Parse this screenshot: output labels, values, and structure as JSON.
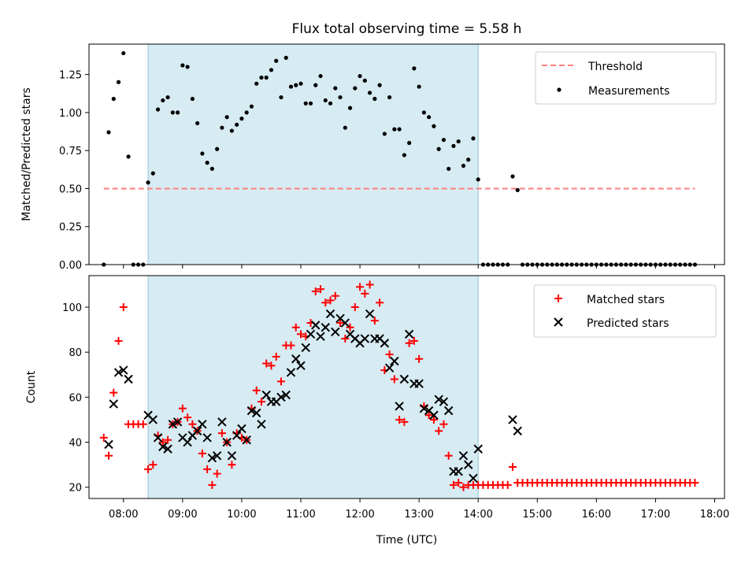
{
  "chart_data": [
    {
      "type": "scatter",
      "title": "Flux total observing time = 5.58 h",
      "xlabel": "",
      "ylabel": "Matched/Predicted stars",
      "xlim": [
        "07:25",
        "18:10"
      ],
      "ylim": [
        0,
        1.45
      ],
      "yticks": [
        0,
        0.25,
        0.5,
        0.75,
        1.0,
        1.25
      ],
      "ytick_labels": [
        "0.00",
        "0.25",
        "0.50",
        "0.75",
        "1.00",
        "1.25"
      ],
      "xticks": [
        "08:00",
        "09:00",
        "10:00",
        "11:00",
        "12:00",
        "13:00",
        "14:00",
        "15:00",
        "16:00",
        "17:00",
        "18:00"
      ],
      "shaded_span": {
        "x": [
          "08:25",
          "14:00"
        ],
        "color": "#add8e6"
      },
      "legend_position": "top-right",
      "threshold": {
        "name": "Threshold",
        "y": 0.5,
        "x": [
          "07:40",
          "17:40"
        ],
        "color": "#ff7f7f",
        "style": "dashed"
      },
      "series": [
        {
          "name": "Measurements",
          "marker": "dot",
          "color": "#000000",
          "x": [
            "07:40",
            "07:45",
            "07:50",
            "07:55",
            "08:00",
            "08:05",
            "08:10",
            "08:15",
            "08:20",
            "08:25",
            "08:30",
            "08:35",
            "08:40",
            "08:45",
            "08:50",
            "08:55",
            "09:00",
            "09:05",
            "09:10",
            "09:15",
            "09:20",
            "09:25",
            "09:30",
            "09:35",
            "09:40",
            "09:45",
            "09:50",
            "09:55",
            "10:00",
            "10:05",
            "10:10",
            "10:15",
            "10:20",
            "10:25",
            "10:30",
            "10:35",
            "10:40",
            "10:45",
            "10:50",
            "10:55",
            "11:00",
            "11:05",
            "11:10",
            "11:15",
            "11:20",
            "11:25",
            "11:30",
            "11:35",
            "11:40",
            "11:45",
            "11:50",
            "11:55",
            "12:00",
            "12:05",
            "12:10",
            "12:15",
            "12:20",
            "12:25",
            "12:30",
            "12:35",
            "12:40",
            "12:45",
            "12:50",
            "12:55",
            "13:00",
            "13:05",
            "13:10",
            "13:15",
            "13:20",
            "13:25",
            "13:30",
            "13:35",
            "13:40",
            "13:45",
            "13:50",
            "13:55",
            "14:00",
            "14:05",
            "14:10",
            "14:15",
            "14:20",
            "14:25",
            "14:30",
            "14:35",
            "14:40",
            "14:45",
            "14:50",
            "14:55",
            "15:00",
            "15:05",
            "15:10",
            "15:15",
            "15:20",
            "15:25",
            "15:30",
            "15:35",
            "15:40",
            "15:45",
            "15:50",
            "15:55",
            "16:00",
            "16:05",
            "16:10",
            "16:15",
            "16:20",
            "16:25",
            "16:30",
            "16:35",
            "16:40",
            "16:45",
            "16:50",
            "16:55",
            "17:00",
            "17:05",
            "17:10",
            "17:15",
            "17:20",
            "17:25",
            "17:30",
            "17:35",
            "17:40"
          ],
          "y": [
            0.0,
            0.87,
            1.09,
            1.2,
            1.39,
            0.71,
            0.0,
            0.0,
            0.0,
            0.54,
            0.6,
            1.02,
            1.08,
            1.1,
            1.0,
            1.0,
            1.31,
            1.3,
            1.09,
            0.93,
            0.73,
            0.67,
            0.63,
            0.76,
            0.9,
            0.97,
            0.88,
            0.92,
            0.96,
            1.0,
            1.04,
            1.19,
            1.23,
            1.23,
            1.28,
            1.34,
            1.1,
            1.36,
            1.17,
            1.18,
            1.19,
            1.06,
            1.06,
            1.18,
            1.24,
            1.08,
            1.06,
            1.16,
            1.1,
            0.9,
            1.03,
            1.16,
            1.24,
            1.21,
            1.13,
            1.09,
            1.18,
            0.86,
            1.1,
            0.89,
            0.89,
            0.72,
            0.8,
            1.29,
            1.17,
            1.0,
            0.97,
            0.91,
            0.76,
            0.82,
            0.63,
            0.78,
            0.81,
            0.65,
            0.69,
            0.83,
            0.56,
            0.0,
            0.0,
            0.0,
            0.0,
            0.0,
            0.0,
            0.58,
            0.49,
            0.0,
            0.0,
            0.0,
            0.0,
            0.0,
            0.0,
            0.0,
            0.0,
            0.0,
            0.0,
            0.0,
            0.0,
            0.0,
            0.0,
            0.0,
            0.0,
            0.0,
            0.0,
            0.0,
            0.0,
            0.0,
            0.0,
            0.0,
            0.0,
            0.0,
            0.0,
            0.0,
            0.0,
            0.0,
            0.0,
            0.0,
            0.0,
            0.0,
            0.0,
            0.0,
            0.0
          ]
        }
      ]
    },
    {
      "type": "scatter",
      "title": "",
      "xlabel": "Time (UTC)",
      "ylabel": "Count",
      "xlim": [
        "07:25",
        "18:10"
      ],
      "ylim": [
        15,
        114
      ],
      "yticks": [
        20,
        40,
        60,
        80,
        100
      ],
      "ytick_labels": [
        "20",
        "40",
        "60",
        "80",
        "100"
      ],
      "xticks": [
        "08:00",
        "09:00",
        "10:00",
        "11:00",
        "12:00",
        "13:00",
        "14:00",
        "15:00",
        "16:00",
        "17:00",
        "18:00"
      ],
      "xtick_labels": [
        "08:00",
        "09:00",
        "10:00",
        "11:00",
        "12:00",
        "13:00",
        "14:00",
        "15:00",
        "16:00",
        "17:00",
        "18:00"
      ],
      "shaded_span": {
        "x": [
          "08:25",
          "14:00"
        ],
        "color": "#add8e6"
      },
      "legend_position": "top-right",
      "series": [
        {
          "name": "Matched stars",
          "marker": "plus",
          "color": "#ff0000",
          "x": [
            "07:40",
            "07:45",
            "07:50",
            "07:55",
            "08:00",
            "08:05",
            "08:10",
            "08:15",
            "08:20",
            "08:25",
            "08:30",
            "08:35",
            "08:40",
            "08:45",
            "08:50",
            "08:55",
            "09:00",
            "09:05",
            "09:10",
            "09:15",
            "09:20",
            "09:25",
            "09:30",
            "09:35",
            "09:40",
            "09:45",
            "09:50",
            "09:55",
            "10:00",
            "10:05",
            "10:10",
            "10:15",
            "10:20",
            "10:25",
            "10:30",
            "10:35",
            "10:40",
            "10:45",
            "10:50",
            "10:55",
            "11:00",
            "11:05",
            "11:10",
            "11:15",
            "11:20",
            "11:25",
            "11:30",
            "11:35",
            "11:40",
            "11:45",
            "11:50",
            "11:55",
            "12:00",
            "12:05",
            "12:10",
            "12:15",
            "12:20",
            "12:25",
            "12:30",
            "12:35",
            "12:40",
            "12:45",
            "12:50",
            "12:55",
            "13:00",
            "13:05",
            "13:10",
            "13:15",
            "13:20",
            "13:25",
            "13:30",
            "13:35",
            "13:40",
            "13:45",
            "13:50",
            "13:55",
            "14:00",
            "14:05",
            "14:10",
            "14:15",
            "14:20",
            "14:25",
            "14:30",
            "14:35",
            "14:40",
            "14:45",
            "14:50",
            "14:55",
            "15:00",
            "15:05",
            "15:10",
            "15:15",
            "15:20",
            "15:25",
            "15:30",
            "15:35",
            "15:40",
            "15:45",
            "15:50",
            "15:55",
            "16:00",
            "16:05",
            "16:10",
            "16:15",
            "16:20",
            "16:25",
            "16:30",
            "16:35",
            "16:40",
            "16:45",
            "16:50",
            "16:55",
            "17:00",
            "17:05",
            "17:10",
            "17:15",
            "17:20",
            "17:25",
            "17:30",
            "17:35",
            "17:40"
          ],
          "y": [
            42,
            34,
            62,
            85,
            100,
            48,
            48,
            48,
            48,
            28,
            30,
            43,
            40,
            41,
            48,
            49,
            55,
            51,
            48,
            45,
            35,
            28,
            21,
            26,
            44,
            40,
            30,
            44,
            42,
            41,
            55,
            63,
            58,
            75,
            74,
            78,
            67,
            83,
            83,
            91,
            88,
            87,
            93,
            107,
            108,
            102,
            103,
            105,
            93,
            86,
            91,
            100,
            109,
            106,
            110,
            94,
            102,
            72,
            79,
            68,
            50,
            49,
            84,
            85,
            77,
            56,
            52,
            50,
            45,
            48,
            34,
            21,
            22,
            20,
            21,
            21,
            21,
            21,
            21,
            21,
            21,
            21,
            21,
            29,
            22,
            22,
            22,
            22,
            22,
            22,
            22,
            22,
            22,
            22,
            22,
            22,
            22,
            22,
            22,
            22,
            22,
            22,
            22,
            22,
            22,
            22,
            22,
            22,
            22,
            22,
            22,
            22,
            22,
            22,
            22,
            22,
            22,
            22,
            22,
            22,
            22
          ]
        },
        {
          "name": "Predicted stars",
          "marker": "x",
          "color": "#000000",
          "x": [
            "07:45",
            "07:50",
            "07:55",
            "08:00",
            "08:05",
            "08:25",
            "08:30",
            "08:35",
            "08:40",
            "08:45",
            "08:50",
            "08:55",
            "09:00",
            "09:05",
            "09:10",
            "09:15",
            "09:20",
            "09:25",
            "09:30",
            "09:35",
            "09:40",
            "09:45",
            "09:50",
            "09:55",
            "10:00",
            "10:05",
            "10:10",
            "10:15",
            "10:20",
            "10:25",
            "10:30",
            "10:35",
            "10:40",
            "10:45",
            "10:50",
            "10:55",
            "11:00",
            "11:05",
            "11:10",
            "11:15",
            "11:20",
            "11:25",
            "11:30",
            "11:35",
            "11:40",
            "11:45",
            "11:50",
            "11:55",
            "12:00",
            "12:05",
            "12:10",
            "12:15",
            "12:20",
            "12:25",
            "12:30",
            "12:35",
            "12:40",
            "12:45",
            "12:50",
            "12:55",
            "13:00",
            "13:05",
            "13:10",
            "13:15",
            "13:20",
            "13:25",
            "13:30",
            "13:35",
            "13:40",
            "13:45",
            "13:50",
            "13:55",
            "14:00",
            "14:35",
            "14:40"
          ],
          "y": [
            39,
            57,
            71,
            72,
            68,
            52,
            50,
            42,
            38,
            37,
            48,
            49,
            42,
            40,
            43,
            45,
            48,
            42,
            33,
            34,
            49,
            40,
            34,
            43,
            46,
            41,
            54,
            53,
            48,
            61,
            58,
            58,
            60,
            61,
            71,
            77,
            74,
            82,
            88,
            92,
            87,
            91,
            97,
            89,
            95,
            93,
            88,
            86,
            84,
            86,
            97,
            86,
            86,
            84,
            73,
            76,
            56,
            68,
            88,
            66,
            66,
            55,
            54,
            52,
            59,
            58,
            54,
            27,
            27,
            34,
            30,
            24,
            37,
            50,
            45
          ]
        }
      ]
    }
  ]
}
